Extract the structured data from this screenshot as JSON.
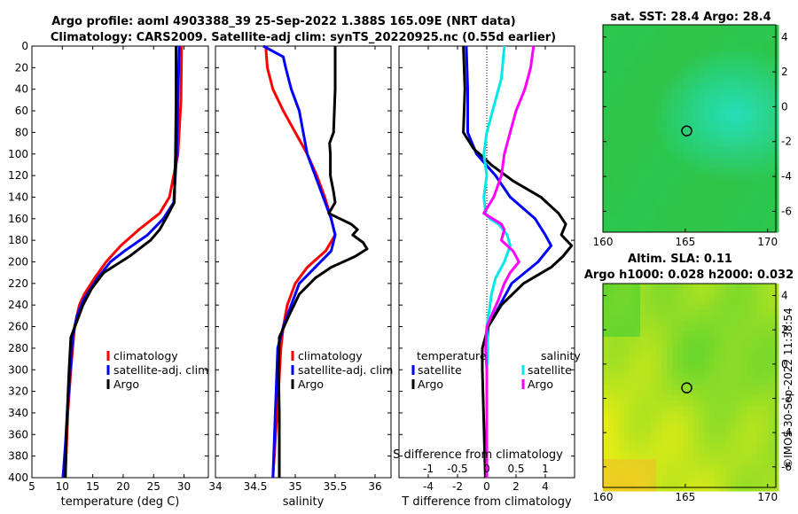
{
  "figure": {
    "title_line1": "Argo profile: aoml 4903388_39 25-Sep-2022 1.388S 165.09E (NRT data)",
    "title_line2": "Climatology: CARS2009. Satellite-adj clim: synTS_20220925.nc (0.55d earlier)",
    "sst_title": "sat. SST: 28.4 Argo: 28.4",
    "alt_title1": "Altim. SLA: 0.11",
    "alt_title2": "Argo h1000: 0.028 h2000: 0.032",
    "copyright": "©IMOS 30-Sep-2022 11:38:54"
  },
  "colors": {
    "climatology": "#ff0000",
    "satellite": "#0000ff",
    "argo": "#000000",
    "sal_satellite": "#00e8e8",
    "sal_argo": "#ff00ff"
  },
  "chart_data": [
    {
      "type": "line",
      "id": "temperature",
      "xlabel": "temperature (deg C)",
      "xlim": [
        5,
        34
      ],
      "ylim": [
        0,
        400
      ],
      "x_ticks": [
        5,
        10,
        15,
        20,
        25,
        30
      ],
      "y_ticks": [
        0,
        20,
        40,
        60,
        80,
        100,
        120,
        140,
        160,
        180,
        200,
        220,
        240,
        260,
        280,
        300,
        320,
        340,
        360,
        380,
        400
      ],
      "legend": [
        "climatology",
        "satellite-adj. clim",
        "Argo"
      ],
      "series": [
        {
          "name": "climatology",
          "depth": [
            0,
            50,
            100,
            140,
            155,
            170,
            185,
            200,
            215,
            230,
            240,
            260,
            280,
            300,
            340,
            370,
            400
          ],
          "values": [
            29.6,
            29.5,
            29.0,
            27.6,
            26.0,
            22.6,
            19.6,
            17.2,
            15.3,
            13.6,
            12.8,
            12.0,
            11.7,
            11.4,
            10.9,
            10.7,
            10.5
          ]
        },
        {
          "name": "satellite-adj. clim",
          "depth": [
            0,
            50,
            100,
            145,
            160,
            175,
            190,
            200,
            215,
            235,
            250,
            270,
            300,
            340,
            370,
            400
          ],
          "values": [
            29.2,
            29.0,
            28.8,
            28.3,
            26.6,
            24.0,
            20.2,
            17.9,
            15.8,
            13.5,
            12.4,
            11.7,
            11.3,
            10.8,
            10.5,
            10.1
          ]
        },
        {
          "name": "Argo",
          "depth": [
            0,
            50,
            100,
            145,
            160,
            170,
            180,
            195,
            210,
            225,
            240,
            255,
            270,
            300,
            340,
            370,
            400
          ],
          "values": [
            28.7,
            28.7,
            28.6,
            28.4,
            27.0,
            26.0,
            24.5,
            21.0,
            16.8,
            14.8,
            13.4,
            12.4,
            11.4,
            11.1,
            10.8,
            10.6,
            10.5
          ]
        }
      ]
    },
    {
      "type": "line",
      "id": "salinity",
      "xlabel": "salinity",
      "xlim": [
        34,
        36.2
      ],
      "ylim": [
        0,
        400
      ],
      "x_ticks": [
        34,
        34.5,
        35,
        35.5,
        36
      ],
      "legend": [
        "climatology",
        "satellite-adj. clim",
        "Argo"
      ],
      "series": [
        {
          "name": "climatology",
          "depth": [
            0,
            20,
            40,
            60,
            80,
            100,
            120,
            140,
            160,
            175,
            190,
            205,
            220,
            240,
            260,
            280,
            320,
            400
          ],
          "values": [
            34.63,
            34.65,
            34.72,
            34.85,
            35.0,
            35.15,
            35.27,
            35.37,
            35.45,
            35.5,
            35.38,
            35.15,
            35.0,
            34.9,
            34.85,
            34.82,
            34.79,
            34.72
          ]
        },
        {
          "name": "satellite-adj. clim",
          "depth": [
            0,
            10,
            20,
            40,
            60,
            80,
            100,
            120,
            140,
            160,
            175,
            190,
            205,
            220,
            240,
            260,
            280,
            320,
            400
          ],
          "values": [
            34.6,
            34.85,
            34.88,
            34.95,
            35.05,
            35.1,
            35.15,
            35.25,
            35.35,
            35.45,
            35.5,
            35.45,
            35.25,
            35.05,
            34.95,
            34.85,
            34.78,
            34.76,
            34.72
          ]
        },
        {
          "name": "Argo",
          "depth": [
            0,
            40,
            80,
            90,
            100,
            120,
            135,
            145,
            155,
            165,
            170,
            175,
            182,
            188,
            195,
            205,
            215,
            230,
            250,
            270,
            300,
            340,
            370,
            400
          ],
          "values": [
            35.5,
            35.5,
            35.48,
            35.43,
            35.44,
            35.44,
            35.48,
            35.5,
            35.42,
            35.7,
            35.78,
            35.72,
            35.85,
            35.9,
            35.75,
            35.45,
            35.25,
            35.05,
            34.92,
            34.8,
            34.79,
            34.8,
            34.8,
            34.8
          ]
        }
      ]
    },
    {
      "type": "line",
      "id": "difference",
      "xlabel": "T difference from climatology",
      "xlabel_top": "S difference from climatology",
      "xlim": [
        -6,
        6
      ],
      "ylim": [
        0,
        400
      ],
      "t_ticks": [
        -4,
        -2,
        0,
        2,
        4
      ],
      "s_ticks": [
        -1,
        -0.5,
        0,
        0.5,
        1
      ],
      "s_tick_labels": [
        "-1",
        "-0.5",
        "0",
        "0.5",
        "1"
      ],
      "s_scale": 4,
      "legend": {
        "temperature_header": "temperature",
        "salinity_header": "salinity",
        "items": [
          "satellite",
          "Argo",
          "satellite",
          "Argo"
        ]
      },
      "series": [
        {
          "name": "T satellite",
          "depth": [
            0,
            40,
            80,
            100,
            120,
            140,
            160,
            175,
            185,
            200,
            220,
            240,
            260,
            280,
            300,
            340,
            400
          ],
          "values": [
            -1.4,
            -1.3,
            -1.3,
            -0.7,
            0.6,
            1.6,
            3.3,
            4.0,
            4.4,
            3.5,
            1.7,
            0.9,
            0.1,
            0.0,
            0.0,
            0.0,
            0.0
          ]
        },
        {
          "name": "T Argo",
          "depth": [
            0,
            40,
            80,
            95,
            110,
            125,
            140,
            155,
            165,
            175,
            185,
            195,
            205,
            220,
            240,
            260,
            280,
            300,
            400
          ],
          "values": [
            -1.6,
            -1.5,
            -1.6,
            -0.9,
            0.3,
            1.8,
            3.7,
            4.9,
            5.4,
            5.1,
            5.8,
            5.2,
            4.4,
            2.5,
            1.0,
            0.1,
            -0.3,
            -0.3,
            -0.1
          ]
        },
        {
          "name": "S satellite",
          "depth": [
            0,
            30,
            60,
            80,
            100,
            120,
            140,
            155,
            160,
            165,
            175,
            185,
            200,
            215,
            230,
            250,
            260,
            280,
            300,
            400
          ],
          "values": [
            0.3,
            0.25,
            0.1,
            0.0,
            -0.05,
            0.0,
            -0.05,
            -0.02,
            0.05,
            0.2,
            0.35,
            0.4,
            0.3,
            0.15,
            0.08,
            0.03,
            0.0,
            0.02,
            0.0,
            0.0
          ]
        },
        {
          "name": "S Argo",
          "depth": [
            0,
            20,
            40,
            60,
            80,
            100,
            120,
            140,
            155,
            160,
            165,
            170,
            180,
            190,
            200,
            210,
            220,
            235,
            250,
            260,
            280,
            300,
            400
          ],
          "values": [
            0.8,
            0.75,
            0.65,
            0.5,
            0.4,
            0.3,
            0.25,
            0.12,
            -0.05,
            0.1,
            0.25,
            0.3,
            0.25,
            0.45,
            0.55,
            0.4,
            0.3,
            0.2,
            0.08,
            0.0,
            -0.02,
            0.0,
            0.0
          ]
        }
      ]
    },
    {
      "type": "heatmap",
      "id": "sst_map",
      "title": "sat. SST: 28.4 Argo: 28.4",
      "xlim": [
        160,
        170.5
      ],
      "ylim": [
        -7.2,
        4.7
      ],
      "x_ticks": [
        160,
        165,
        170
      ],
      "y_ticks": [
        -6,
        -4,
        -2,
        0,
        2,
        4
      ],
      "float_position": [
        165.09,
        -1.388
      ]
    },
    {
      "type": "heatmap",
      "id": "sla_map",
      "title": "Altim. SLA: 0.11",
      "xlim": [
        160,
        170.5
      ],
      "ylim": [
        -7.2,
        4.7
      ],
      "x_ticks": [
        160,
        165,
        170
      ],
      "y_ticks": [
        -6,
        -4,
        -2,
        0,
        2,
        4
      ],
      "float_position": [
        165.09,
        -1.388
      ]
    }
  ]
}
